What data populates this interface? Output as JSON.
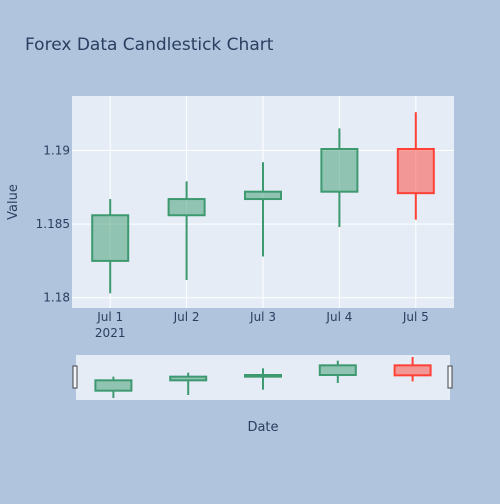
{
  "chart_data": {
    "type": "candlestick",
    "title": "Forex Data Candlestick Chart",
    "xlabel": "Date",
    "ylabel": "Value",
    "x": [
      "2021-07-01",
      "2021-07-02",
      "2021-07-03",
      "2021-07-04",
      "2021-07-05"
    ],
    "x_tick_labels": [
      "Jul 1",
      "Jul 2",
      "Jul 3",
      "Jul 4",
      "Jul 5"
    ],
    "x_tick_sublabel": "2021",
    "y_tick_labels": [
      "1.18",
      "1.185",
      "1.19"
    ],
    "ylim": [
      1.1793,
      1.1937
    ],
    "open": [
      1.1825,
      1.1856,
      1.1867,
      1.1872,
      1.1901
    ],
    "high": [
      1.1867,
      1.1879,
      1.1892,
      1.1915,
      1.1926
    ],
    "low": [
      1.1803,
      1.1812,
      1.1828,
      1.1848,
      1.1853
    ],
    "close": [
      1.1856,
      1.1867,
      1.1872,
      1.1901,
      1.1871
    ],
    "increasing_color": "#3d9970",
    "decreasing_color": "#ff4136",
    "grid": true,
    "rangeslider": true
  },
  "colors": {
    "paper_bg": "#b0c4de",
    "plot_bg": "#e5ecf6",
    "grid": "#ffffff",
    "text": "#2a3f5f"
  }
}
